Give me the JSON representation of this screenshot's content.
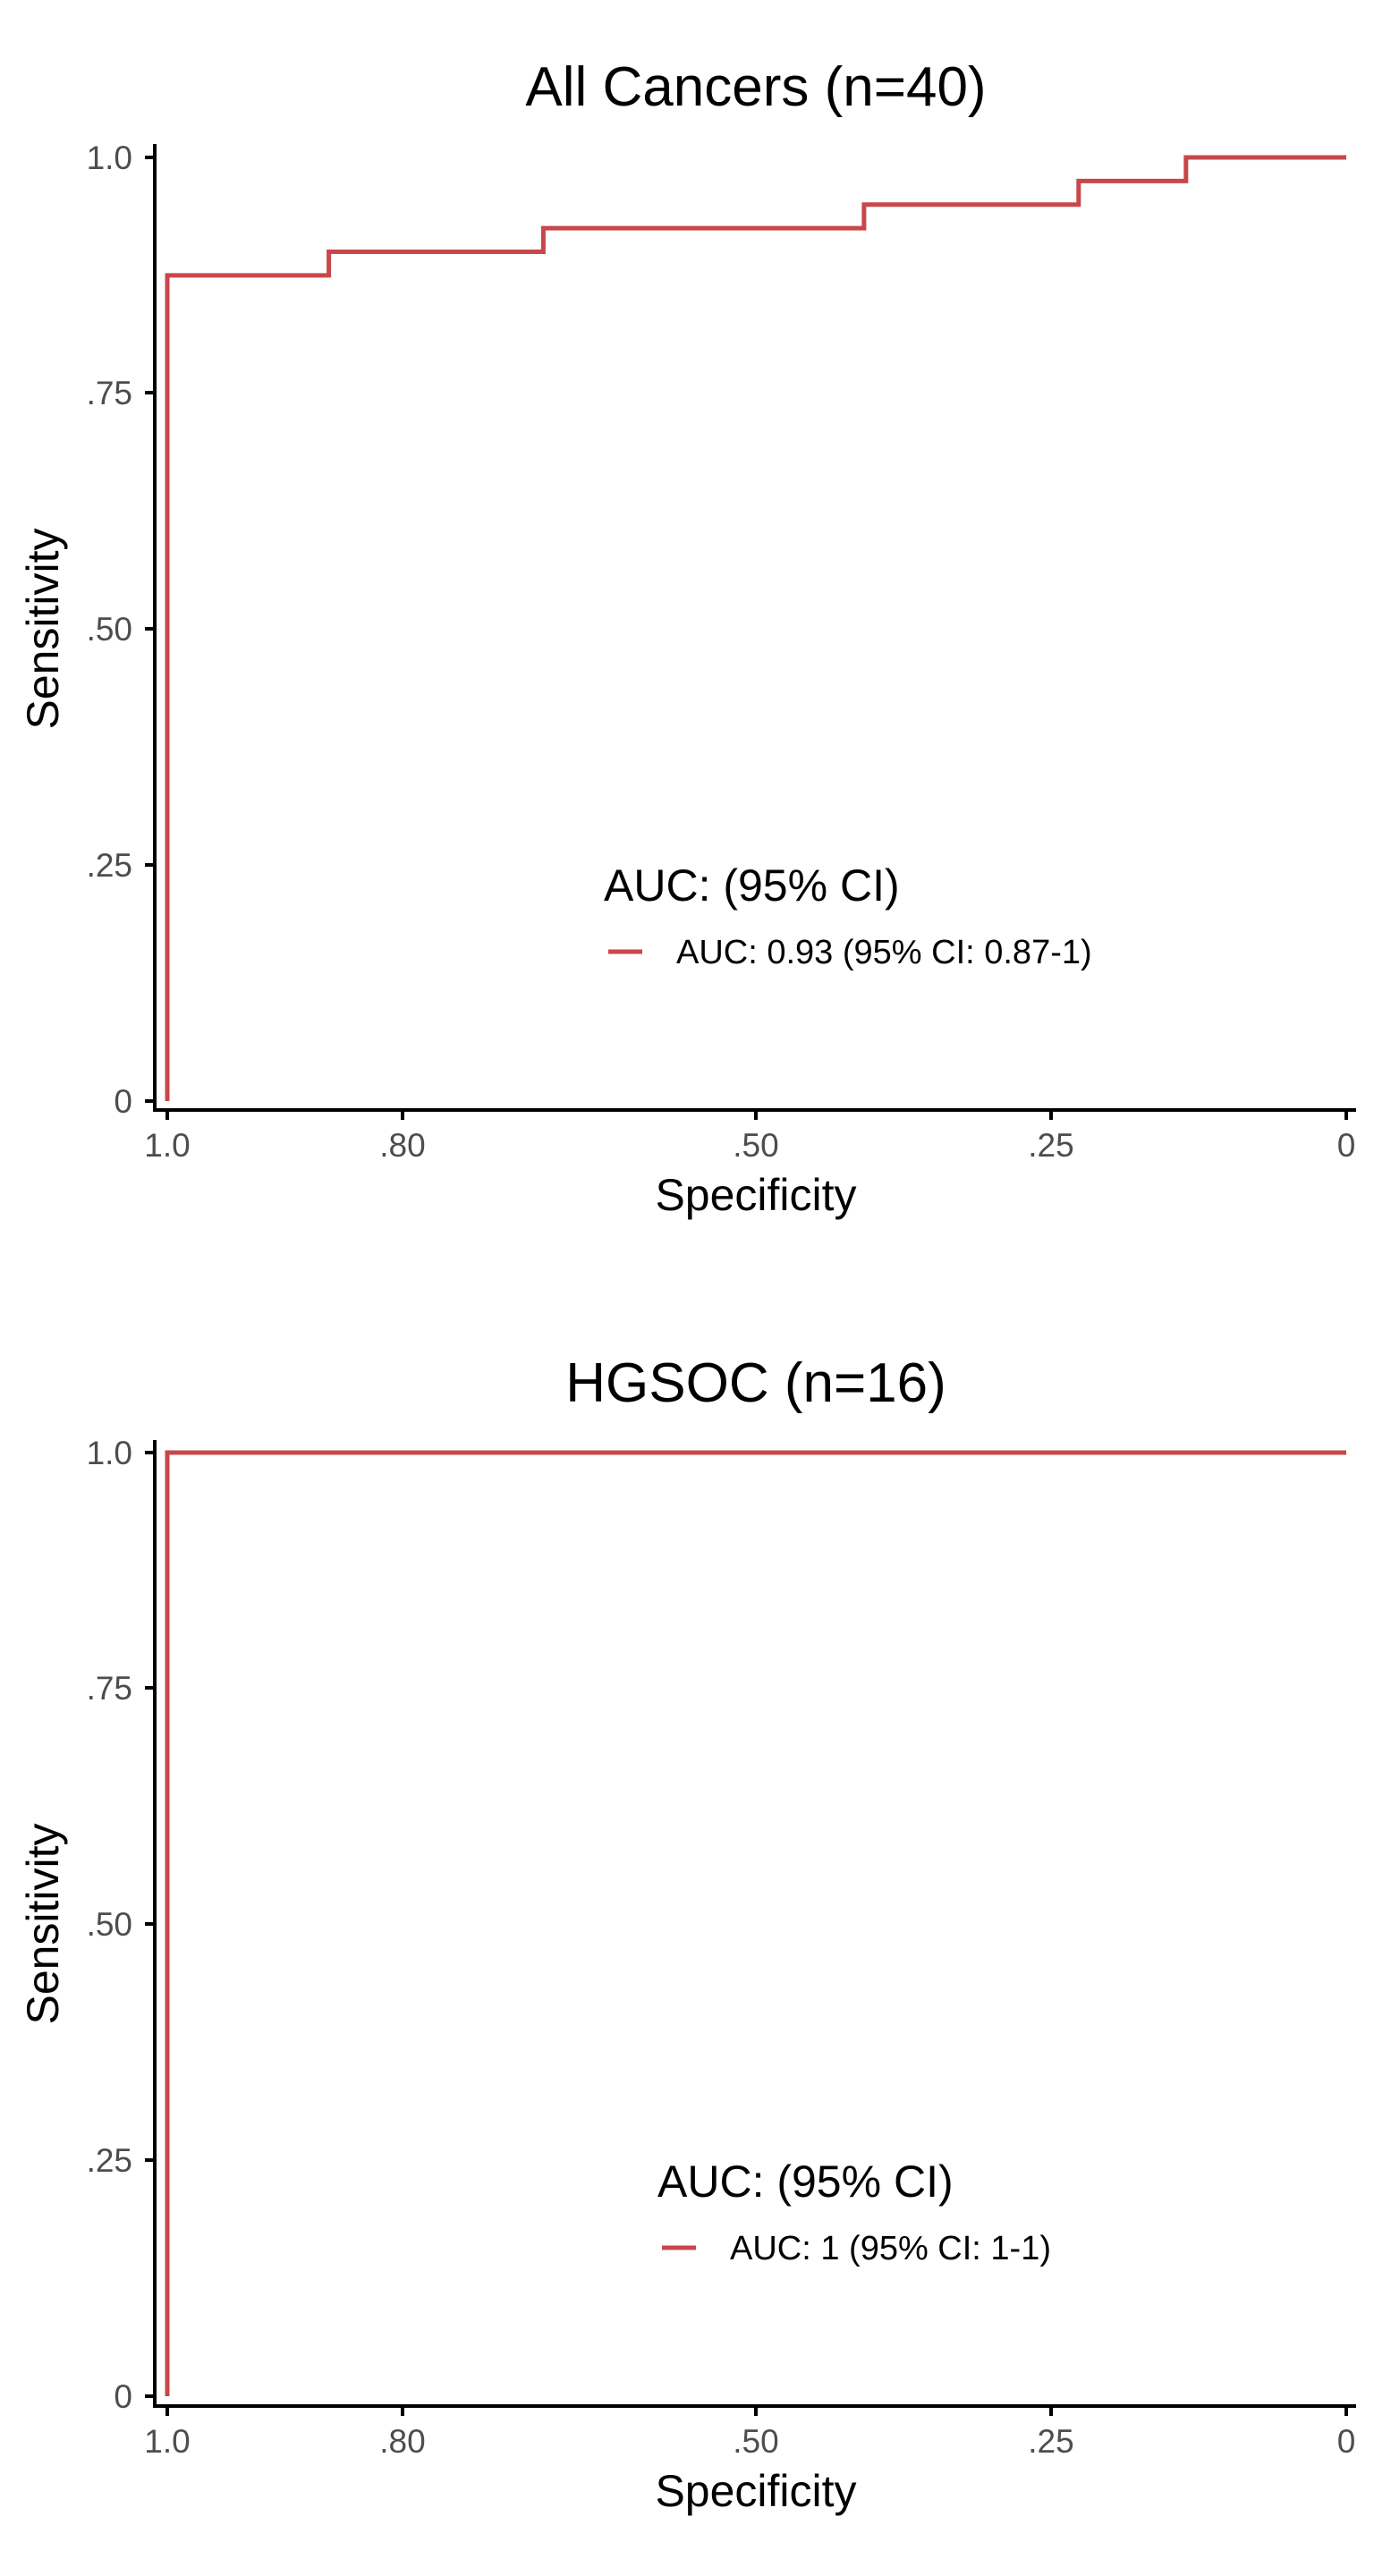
{
  "colors": {
    "curve": "#c8474b",
    "axis": "#000000",
    "tick_text": "#4d4d4d"
  },
  "chart_data": [
    {
      "type": "line",
      "title": "All Cancers (n=40)",
      "xlabel": "Specificity",
      "ylabel": "Sensitivity",
      "x_reversed": true,
      "xlim": [
        1.0,
        0
      ],
      "ylim": [
        0,
        1.0
      ],
      "xticks": [
        1.0,
        0.8,
        0.5,
        0.25,
        0
      ],
      "xtick_labels": [
        "1.0",
        ".80",
        ".50",
        ".25",
        "0"
      ],
      "yticks": [
        0,
        0.25,
        0.5,
        0.75,
        1.0
      ],
      "ytick_labels": [
        "0",
        ".25",
        ".50",
        ".75",
        "1.0"
      ],
      "grid": false,
      "legend_title": "AUC: (95% CI)",
      "legend_placement": "bottom-center",
      "series": [
        {
          "name": "AUC: 0.93 (95% CI: 0.87-1)",
          "points": [
            [
              1.0,
              0
            ],
            [
              1.0,
              0.875
            ],
            [
              0.863,
              0.875
            ],
            [
              0.863,
              0.9
            ],
            [
              0.681,
              0.9
            ],
            [
              0.681,
              0.925
            ],
            [
              0.409,
              0.925
            ],
            [
              0.409,
              0.95
            ],
            [
              0.227,
              0.95
            ],
            [
              0.227,
              0.975
            ],
            [
              0.136,
              0.975
            ],
            [
              0.136,
              1.0
            ],
            [
              0,
              1.0
            ]
          ]
        }
      ]
    },
    {
      "type": "line",
      "title": "HGSOC (n=16)",
      "xlabel": "Specificity",
      "ylabel": "Sensitivity",
      "x_reversed": true,
      "xlim": [
        1.0,
        0
      ],
      "ylim": [
        0,
        1.0
      ],
      "xticks": [
        1.0,
        0.8,
        0.5,
        0.25,
        0
      ],
      "xtick_labels": [
        "1.0",
        ".80",
        ".50",
        ".25",
        "0"
      ],
      "yticks": [
        0,
        0.25,
        0.5,
        0.75,
        1.0
      ],
      "ytick_labels": [
        "0",
        ".25",
        ".50",
        ".75",
        "1.0"
      ],
      "grid": false,
      "legend_title": "AUC: (95% CI)",
      "legend_placement": "bottom-center",
      "series": [
        {
          "name": "AUC: 1 (95% CI: 1-1)",
          "points": [
            [
              1.0,
              0
            ],
            [
              1.0,
              1.0
            ],
            [
              0,
              1.0
            ]
          ]
        }
      ]
    }
  ]
}
